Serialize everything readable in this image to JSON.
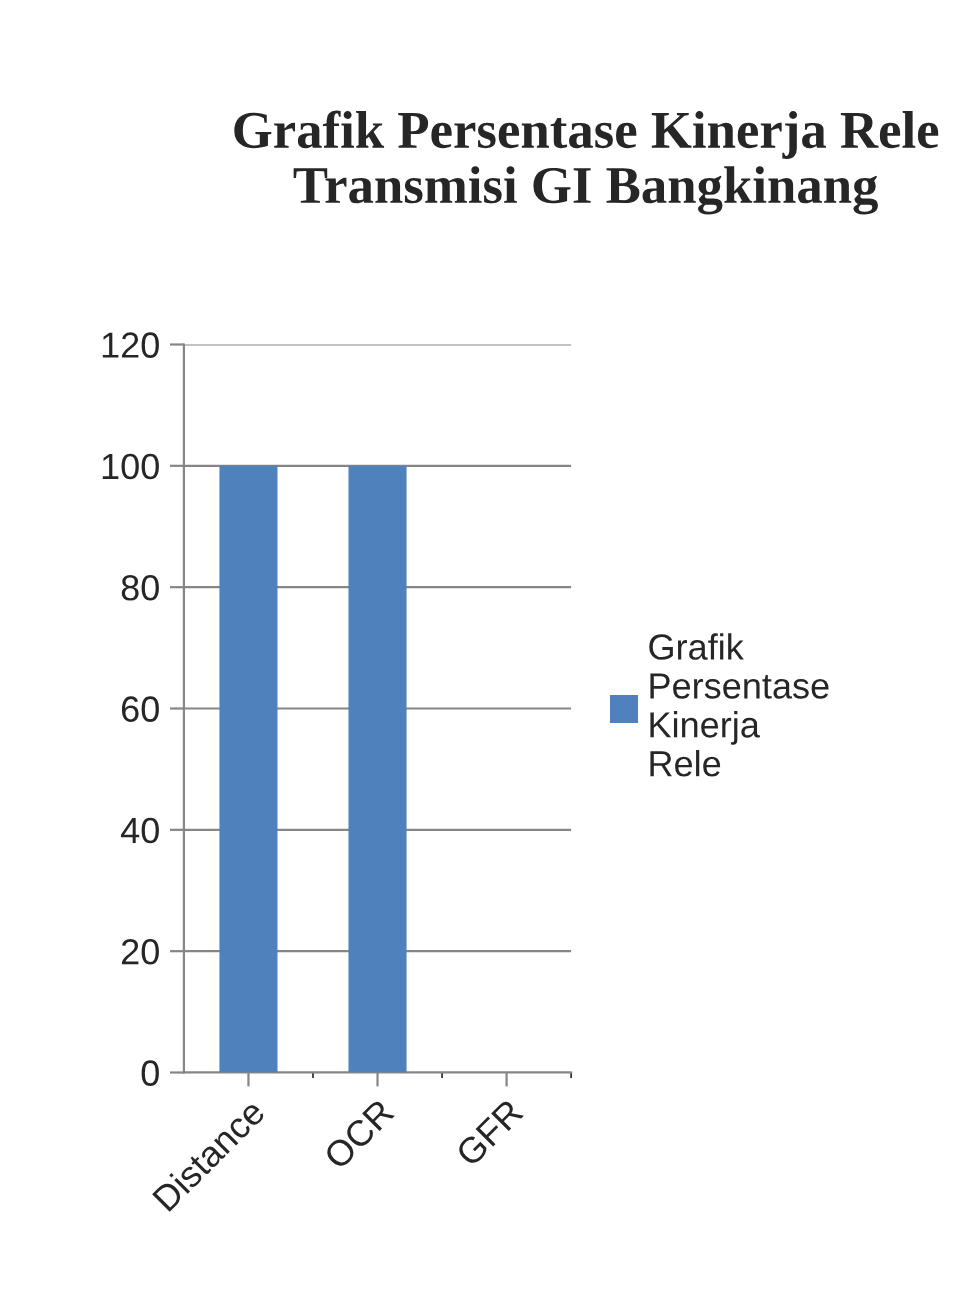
{
  "chart_data": {
    "type": "bar",
    "title": "Grafik Persentase Kinerja Rele Transmisi GI Bangkinang",
    "categories": [
      "Distance",
      "OCR",
      "GFR"
    ],
    "series": [
      {
        "name": "Grafik Persentase Kinerja Rele",
        "color": "#4f81bd",
        "values": [
          100,
          100,
          0
        ]
      }
    ],
    "ylim": [
      0,
      120
    ],
    "yticks": [
      0,
      20,
      40,
      60,
      80,
      100,
      120
    ],
    "grid": "y",
    "legend": "right"
  }
}
